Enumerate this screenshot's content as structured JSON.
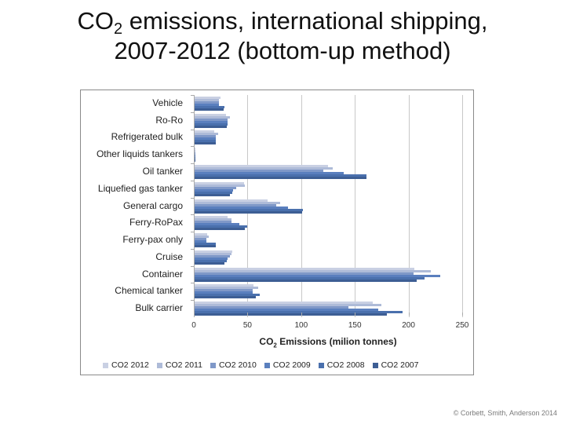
{
  "slide": {
    "title_line1_pre": "CO",
    "title_line1_sub": "2",
    "title_line1_post": " emissions, international shipping,",
    "title_line2": "2007-2012 (bottom-up method)",
    "credit": "© Corbett, Smith, Anderson 2014"
  },
  "chart_data": {
    "type": "bar",
    "orientation": "horizontal",
    "title": "CO2 emissions, international shipping, 2007-2012 (bottom-up method)",
    "xlabel": "CO2 Emissions (milion tonnes)",
    "ylabel": "",
    "xlim": [
      0,
      250
    ],
    "x_ticks": [
      0,
      50,
      100,
      150,
      200,
      250
    ],
    "grid": "vertical major gridlines",
    "legend_position": "bottom",
    "categories": [
      "Vehicle",
      "Ro-Ro",
      "Refrigerated bulk",
      "Other liquids tankers",
      "Oil tanker",
      "Liquefied gas tanker",
      "General cargo",
      "Ferry-RoPax",
      "Ferry-pax only",
      "Cruise",
      "Container",
      "Chemical tanker",
      "Bulk carrier"
    ],
    "series": [
      {
        "name": "CO2 2012",
        "color": "#c9d0e3",
        "values": [
          24,
          29,
          18,
          1,
          124,
          46,
          68,
          31,
          12,
          35,
          205,
          55,
          166
        ]
      },
      {
        "name": "CO2 2011",
        "color": "#aebbd8",
        "values": [
          23,
          33,
          22,
          1,
          129,
          47,
          80,
          34,
          13,
          34,
          220,
          59,
          174
        ]
      },
      {
        "name": "CO2 2010",
        "color": "#7f98c8",
        "values": [
          23,
          31,
          20,
          1,
          120,
          39,
          76,
          34,
          11,
          33,
          204,
          54,
          143
        ]
      },
      {
        "name": "CO2 2009",
        "color": "#5a7fbe",
        "values": [
          23,
          31,
          20,
          1,
          139,
          36,
          87,
          42,
          11,
          31,
          229,
          54,
          171
        ]
      },
      {
        "name": "CO2 2008",
        "color": "#4a70ad",
        "values": [
          28,
          31,
          20,
          1,
          160,
          35,
          101,
          49,
          20,
          30,
          214,
          61,
          194
        ]
      },
      {
        "name": "CO2 2007",
        "color": "#3d5e94",
        "values": [
          27,
          30,
          20,
          1,
          160,
          33,
          100,
          47,
          20,
          28,
          207,
          57,
          179
        ]
      }
    ]
  },
  "axis": {
    "x_title_pre": "CO",
    "x_title_sub": "2",
    "x_title_post": " Emissions (milion tonnes)"
  }
}
